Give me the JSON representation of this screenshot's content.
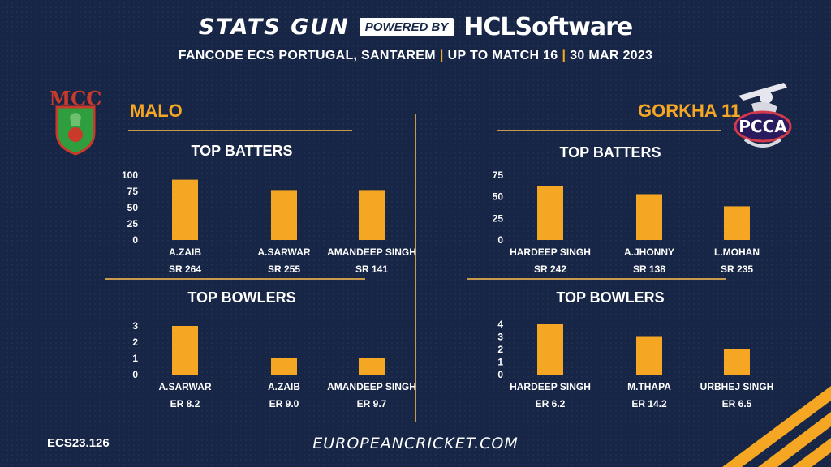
{
  "header": {
    "brand": "STATS GUN",
    "powered_by": "POWERED BY",
    "sponsor": "HCLSoftware",
    "event": "FANCODE ECS PORTUGAL, SANTAREM",
    "scope": "UP TO MATCH  16",
    "date": "30 MAR 2023",
    "separator": "|"
  },
  "teams": {
    "left": {
      "name": "MALO",
      "logo_text": "MCC"
    },
    "right": {
      "name": "GORKHA 11",
      "logo_text": "PCCA"
    }
  },
  "sections": {
    "batters": "TOP BATTERS",
    "bowlers": "TOP BOWLERS"
  },
  "footer": {
    "code": "ECS23.126",
    "website": "EUROPEANCRICKET.COM"
  },
  "colors": {
    "background": "#172646",
    "accent": "#f5a623",
    "rule": "#c79a4e"
  },
  "chart_data": [
    {
      "type": "bar",
      "team": "MALO",
      "section": "TOP BATTERS",
      "categories": [
        "A.ZAIB",
        "A.SARWAR",
        "AMANDEEP SINGH"
      ],
      "values": [
        93,
        77,
        77
      ],
      "sublabels": [
        "SR 264",
        "SR 255",
        "SR 141"
      ],
      "ylim": [
        0,
        100
      ],
      "yticks": [
        0,
        25,
        50,
        75,
        100
      ]
    },
    {
      "type": "bar",
      "team": "MALO",
      "section": "TOP BOWLERS",
      "categories": [
        "A.SARWAR",
        "A.ZAIB",
        "AMANDEEP SINGH"
      ],
      "values": [
        3,
        1,
        1
      ],
      "sublabels": [
        "ER 8.2",
        "ER 9.0",
        "ER 9.7"
      ],
      "ylim": [
        0,
        3
      ],
      "yticks": [
        0,
        1,
        2,
        3
      ]
    },
    {
      "type": "bar",
      "team": "GORKHA 11",
      "section": "TOP BATTERS",
      "categories": [
        "HARDEEP SINGH",
        "A.JHONNY",
        "L.MOHAN"
      ],
      "values": [
        62,
        53,
        39
      ],
      "sublabels": [
        "SR 242",
        "SR 138",
        "SR 235"
      ],
      "ylim": [
        0,
        75
      ],
      "yticks": [
        0,
        25,
        50,
        75
      ]
    },
    {
      "type": "bar",
      "team": "GORKHA 11",
      "section": "TOP BOWLERS",
      "categories": [
        "HARDEEP SINGH",
        "M.THAPA",
        "URBHEJ SINGH"
      ],
      "values": [
        4,
        3,
        2
      ],
      "sublabels": [
        "ER 6.2",
        "ER 14.2",
        "ER 6.5"
      ],
      "ylim": [
        0,
        4
      ],
      "yticks": [
        0,
        1,
        2,
        3,
        4
      ]
    }
  ]
}
